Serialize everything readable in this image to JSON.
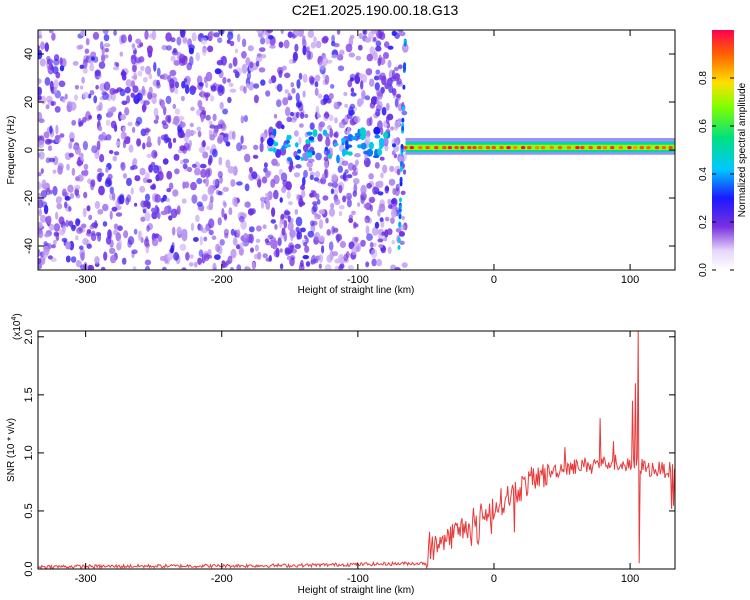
{
  "title": "C2E1.2025.190.00.18.G13",
  "chart_data": [
    {
      "type": "heatmap",
      "xlabel": "Height of straight line (km)",
      "ylabel": "Frequency (Hz)",
      "xlim": [
        -335,
        133
      ],
      "ylim": [
        -50,
        50
      ],
      "xticks": [
        -300,
        -200,
        -100,
        0,
        100
      ],
      "yticks": [
        40,
        20,
        0,
        -20,
        -40
      ],
      "colorbar": {
        "label": "Normalized spectral amplitude",
        "range": [
          0,
          1
        ],
        "ticks": [
          0.0,
          0.2,
          0.4,
          0.6,
          0.8
        ],
        "tick_labels": [
          "0.0",
          "0.2",
          "0.4",
          "0.6",
          "0.8"
        ]
      },
      "features": [
        {
          "name": "noise region",
          "x_range": [
            -335,
            -65
          ],
          "level": 0.15
        },
        {
          "name": "signal line",
          "x_range": [
            -65,
            133
          ],
          "frequency": 1,
          "level": 0.85
        },
        {
          "name": "left edge streak",
          "x_range": [
            -70,
            -65
          ],
          "freq_range": [
            -45,
            48
          ]
        }
      ]
    },
    {
      "type": "line",
      "xlabel": "Height of straight line (km)",
      "ylabel": "SNR (10 * v/v)",
      "multiplier_label": "(x10",
      "multiplier_exp": "4",
      "xlim": [
        -335,
        133
      ],
      "ylim": [
        0,
        2.05
      ],
      "xticks": [
        -300,
        -200,
        -100,
        0,
        100
      ],
      "yticks": [
        "0.0",
        "0.5",
        "1.0",
        "1.5",
        "2.0"
      ],
      "line_color": "#e83a3a",
      "envelope": [
        {
          "x": -335,
          "y": 0.02
        },
        {
          "x": -150,
          "y": 0.03
        },
        {
          "x": -100,
          "y": 0.04
        },
        {
          "x": -50,
          "y": 0.05
        },
        {
          "x": -45,
          "y": 0.18
        },
        {
          "x": -30,
          "y": 0.3
        },
        {
          "x": -10,
          "y": 0.45
        },
        {
          "x": 10,
          "y": 0.62
        },
        {
          "x": 30,
          "y": 0.78
        },
        {
          "x": 50,
          "y": 0.87
        },
        {
          "x": 70,
          "y": 0.9
        },
        {
          "x": 90,
          "y": 0.92
        },
        {
          "x": 100,
          "y": 0.88
        },
        {
          "x": 105,
          "y": 0.9
        },
        {
          "x": 115,
          "y": 0.86
        },
        {
          "x": 133,
          "y": 0.85
        }
      ],
      "spikes": [
        {
          "x": -47,
          "y": 0.32
        },
        {
          "x": 52,
          "y": 1.05
        },
        {
          "x": 78,
          "y": 1.3
        },
        {
          "x": 88,
          "y": 1.1
        },
        {
          "x": 102,
          "y": 1.45
        },
        {
          "x": 104,
          "y": 1.6
        },
        {
          "x": 106,
          "y": 2.05
        },
        {
          "x": 107,
          "y": 0.05
        }
      ]
    }
  ]
}
